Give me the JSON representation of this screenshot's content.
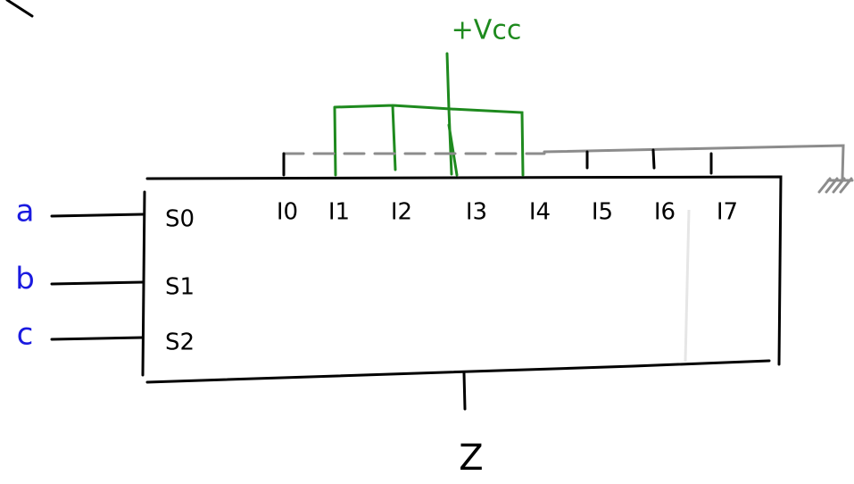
{
  "vcc_label": "+Vcc",
  "select_inputs": [
    {
      "name": "a",
      "pin": "S0"
    },
    {
      "name": "b",
      "pin": "S1"
    },
    {
      "name": "c",
      "pin": "S2"
    }
  ],
  "data_inputs": [
    "I0",
    "I1",
    "I2",
    "I3",
    "I4",
    "I5",
    "I6",
    "I7"
  ],
  "output": "Z"
}
